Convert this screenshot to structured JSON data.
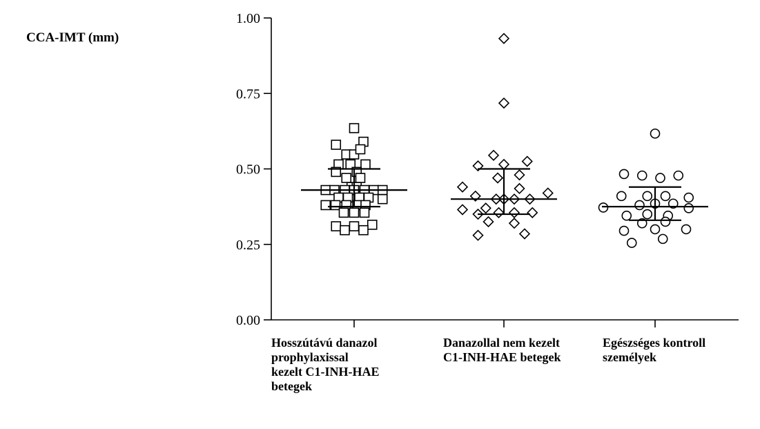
{
  "chart_data": {
    "type": "scatter",
    "ylabel": "CCA-IMT (mm)",
    "ylim": [
      0,
      1
    ],
    "yticks": [
      "0.00",
      "0.25",
      "0.50",
      "0.75",
      "1.00"
    ],
    "grid": false,
    "legend": "none",
    "categories": [
      "Hosszútávú danazol\nprophylaxissal\nkezelt C1-INH-HAE\nbetegek",
      "Danazollal nem kezelt\nC1-INH-HAE betegek",
      "Egészséges kontroll\nszemélyek"
    ],
    "series": [
      {
        "marker": "square",
        "median": 0.43,
        "q1": 0.375,
        "q3": 0.5,
        "points": [
          [
            0,
            0.635
          ],
          [
            -0.35,
            0.58
          ],
          [
            0.18,
            0.59
          ],
          [
            -0.15,
            0.548
          ],
          [
            0.0,
            0.548
          ],
          [
            0.12,
            0.565
          ],
          [
            -0.3,
            0.515
          ],
          [
            -0.07,
            0.515
          ],
          [
            0.22,
            0.515
          ],
          [
            -0.35,
            0.49
          ],
          [
            0.05,
            0.49
          ],
          [
            -0.15,
            0.47
          ],
          [
            0.12,
            0.47
          ],
          [
            -0.05,
            0.44
          ],
          [
            0.05,
            0.44
          ],
          [
            -0.55,
            0.43
          ],
          [
            -0.38,
            0.43
          ],
          [
            -0.18,
            0.43
          ],
          [
            0.0,
            0.43
          ],
          [
            0.2,
            0.43
          ],
          [
            0.38,
            0.43
          ],
          [
            0.55,
            0.43
          ],
          [
            -0.3,
            0.405
          ],
          [
            -0.12,
            0.405
          ],
          [
            0.1,
            0.405
          ],
          [
            0.28,
            0.405
          ],
          [
            0.55,
            0.4
          ],
          [
            -0.55,
            0.38
          ],
          [
            -0.36,
            0.38
          ],
          [
            -0.15,
            0.38
          ],
          [
            0.06,
            0.38
          ],
          [
            0.22,
            0.38
          ],
          [
            -0.2,
            0.355
          ],
          [
            0.0,
            0.355
          ],
          [
            0.2,
            0.355
          ],
          [
            -0.35,
            0.31
          ],
          [
            0.0,
            0.31
          ],
          [
            0.35,
            0.315
          ],
          [
            -0.18,
            0.297
          ],
          [
            0.18,
            0.297
          ]
        ]
      },
      {
        "marker": "diamond",
        "median": 0.4,
        "q1": 0.35,
        "q3": 0.5,
        "points": [
          [
            0,
            0.932
          ],
          [
            0,
            0.718
          ],
          [
            -0.2,
            0.545
          ],
          [
            -0.5,
            0.51
          ],
          [
            0.0,
            0.515
          ],
          [
            0.45,
            0.525
          ],
          [
            -0.12,
            0.47
          ],
          [
            0.3,
            0.48
          ],
          [
            -0.8,
            0.44
          ],
          [
            0.3,
            0.435
          ],
          [
            -0.55,
            0.41
          ],
          [
            -0.15,
            0.4
          ],
          [
            0.0,
            0.4
          ],
          [
            0.2,
            0.4
          ],
          [
            0.5,
            0.4
          ],
          [
            0.85,
            0.42
          ],
          [
            -0.8,
            0.365
          ],
          [
            -0.35,
            0.37
          ],
          [
            -0.5,
            0.35
          ],
          [
            -0.1,
            0.355
          ],
          [
            0.2,
            0.355
          ],
          [
            0.55,
            0.355
          ],
          [
            -0.3,
            0.325
          ],
          [
            0.2,
            0.32
          ],
          [
            -0.5,
            0.28
          ],
          [
            0.4,
            0.285
          ]
        ]
      },
      {
        "marker": "circle",
        "median": 0.375,
        "q1": 0.33,
        "q3": 0.44,
        "points": [
          [
            0,
            0.617
          ],
          [
            -0.6,
            0.483
          ],
          [
            -0.25,
            0.478
          ],
          [
            0.1,
            0.47
          ],
          [
            0.45,
            0.478
          ],
          [
            -0.65,
            0.41
          ],
          [
            -0.15,
            0.41
          ],
          [
            0.2,
            0.41
          ],
          [
            0.65,
            0.405
          ],
          [
            -1.0,
            0.372
          ],
          [
            -0.3,
            0.38
          ],
          [
            0.0,
            0.385
          ],
          [
            0.35,
            0.385
          ],
          [
            0.65,
            0.37
          ],
          [
            -0.55,
            0.345
          ],
          [
            -0.15,
            0.35
          ],
          [
            0.25,
            0.345
          ],
          [
            -0.25,
            0.32
          ],
          [
            0.2,
            0.325
          ],
          [
            -0.6,
            0.295
          ],
          [
            0.0,
            0.3
          ],
          [
            0.6,
            0.3
          ],
          [
            -0.45,
            0.255
          ],
          [
            0.15,
            0.268
          ]
        ]
      }
    ]
  }
}
